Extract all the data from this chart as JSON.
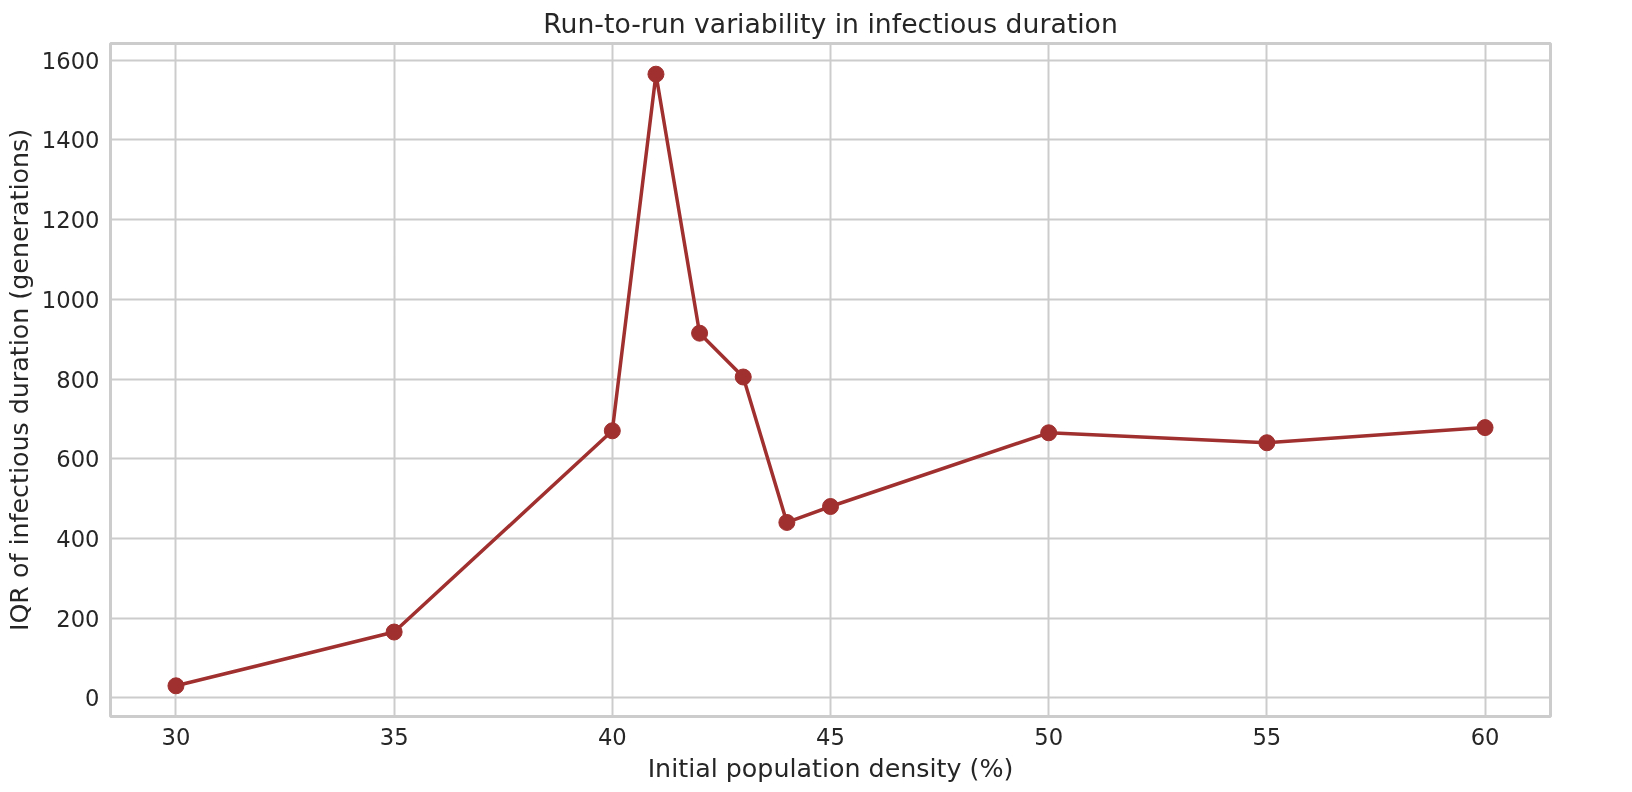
{
  "chart_data": {
    "type": "line",
    "title": "Run-to-run variability in infectious duration",
    "xlabel": "Initial population density (%)",
    "ylabel": "IQR of infectious duration (generations)",
    "x": [
      30,
      35,
      40,
      41,
      42,
      43,
      44,
      45,
      50,
      55,
      60
    ],
    "series": [
      {
        "color": "#a0302f",
        "values": [
          30,
          165,
          670,
          1565,
          915,
          805,
          440,
          480,
          665,
          640,
          678
        ]
      }
    ],
    "xlim": [
      28.5,
      61.5
    ],
    "ylim": [
      -47,
      1642
    ],
    "xticks": [
      30,
      35,
      40,
      45,
      50,
      55,
      60
    ],
    "yticks": [
      0,
      200,
      400,
      600,
      800,
      1000,
      1200,
      1400,
      1600
    ],
    "grid": true,
    "marker": "circle",
    "line_style": "solid"
  }
}
